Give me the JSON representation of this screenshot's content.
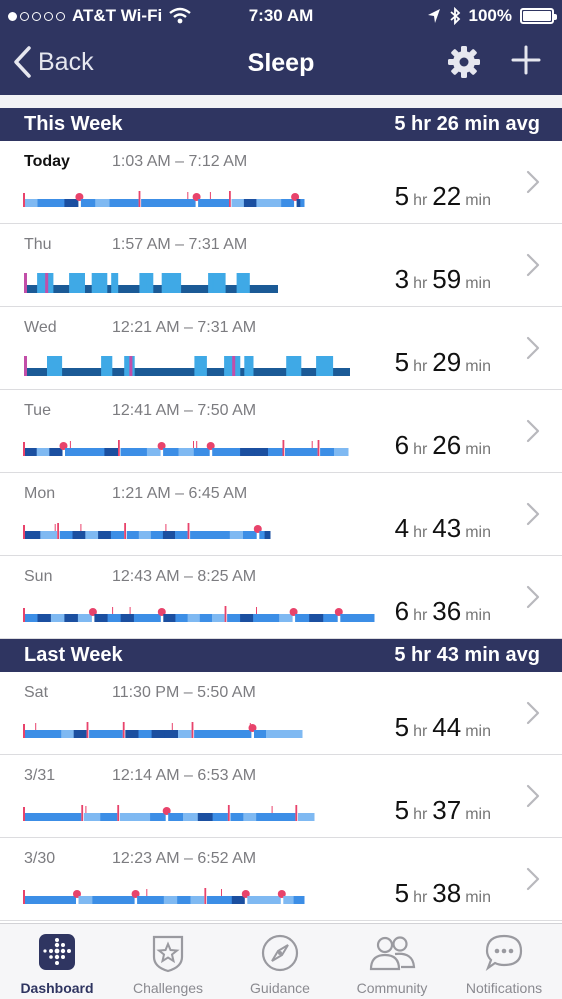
{
  "status_bar": {
    "carrier": "AT&T Wi-Fi",
    "time": "7:30 AM",
    "battery": "100%"
  },
  "nav": {
    "back_label": "Back",
    "title": "Sleep"
  },
  "this_week": {
    "label": "This Week",
    "avg": "5 hr 26 min avg",
    "rows": [
      {
        "day": "Today",
        "range": "1:03 AM – 7:12 AM",
        "hr": "5",
        "min": "22",
        "style": "stages"
      },
      {
        "day": "Thu",
        "range": "1:57 AM – 7:31 AM",
        "hr": "3",
        "min": "59",
        "style": "classic"
      },
      {
        "day": "Wed",
        "range": "12:21 AM – 7:31 AM",
        "hr": "5",
        "min": "29",
        "style": "classic"
      },
      {
        "day": "Tue",
        "range": "12:41 AM – 7:50 AM",
        "hr": "6",
        "min": "26",
        "style": "stages"
      },
      {
        "day": "Mon",
        "range": "1:21 AM – 6:45 AM",
        "hr": "4",
        "min": "43",
        "style": "stages"
      },
      {
        "day": "Sun",
        "range": "12:43 AM – 8:25 AM",
        "hr": "6",
        "min": "36",
        "style": "stages"
      }
    ]
  },
  "last_week": {
    "label": "Last Week",
    "avg": "5 hr 43 min avg",
    "rows": [
      {
        "day": "Sat",
        "range": "11:30 PM – 5:50 AM",
        "hr": "5",
        "min": "44",
        "style": "stages"
      },
      {
        "day": "3/31",
        "range": "12:14 AM – 6:53 AM",
        "hr": "5",
        "min": "37",
        "style": "stages"
      },
      {
        "day": "3/30",
        "range": "12:23 AM – 6:52 AM",
        "hr": "5",
        "min": "38",
        "style": "stages"
      }
    ]
  },
  "units": {
    "hr": "hr",
    "min": "min"
  },
  "tabs": [
    {
      "label": "Dashboard",
      "icon": "dashboard-icon",
      "active": true
    },
    {
      "label": "Challenges",
      "icon": "challenges-star-icon",
      "active": false
    },
    {
      "label": "Guidance",
      "icon": "compass-icon",
      "active": false
    },
    {
      "label": "Community",
      "icon": "community-people-icon",
      "active": false
    },
    {
      "label": "Notifications",
      "icon": "notifications-chat-icon",
      "active": false
    }
  ],
  "colors": {
    "header": "#2f3561",
    "awake": "#e8436b",
    "rem": "#7fb9f2",
    "light": "#3c8ee6",
    "deep": "#1b4fa0",
    "classic_asleep": "#1b5a96",
    "classic_restless": "#3fa9e6",
    "classic_awake": "#c24ea8"
  }
}
